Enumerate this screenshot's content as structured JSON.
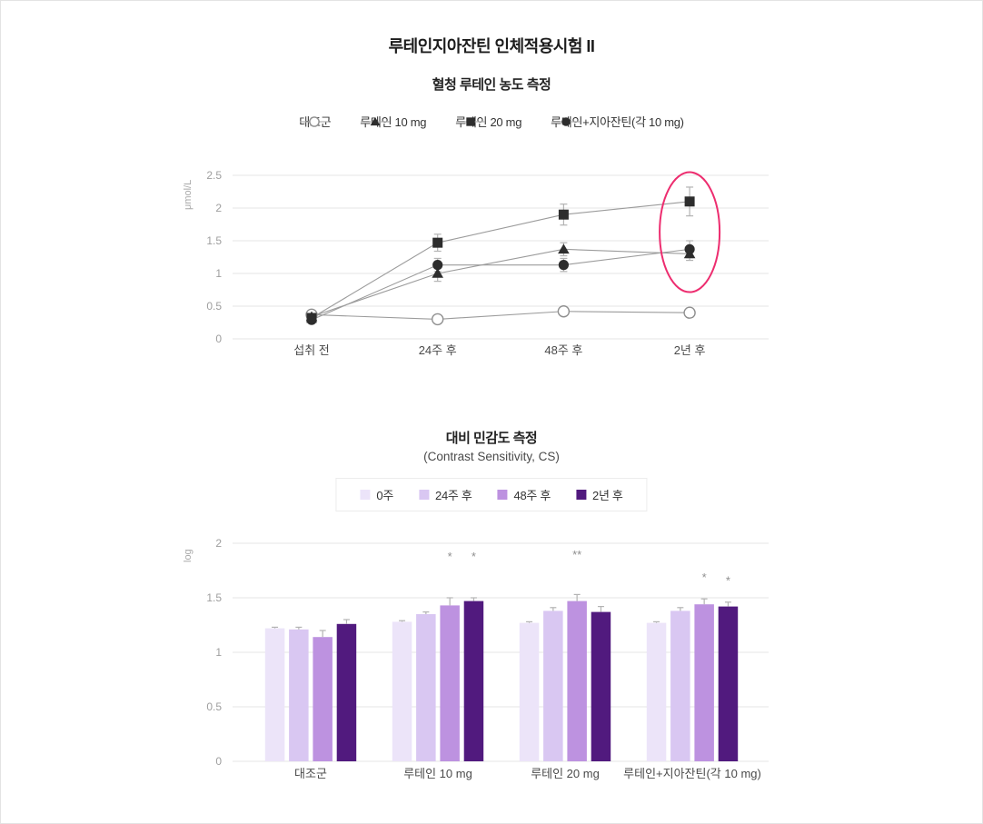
{
  "page": {
    "title": "루테인지아잔틴 인체적용시험 II"
  },
  "chart_data": [
    {
      "type": "line",
      "title": "혈청 루테인 농도 측정",
      "ylabel": "μmol/L",
      "ylim": [
        0,
        2.5
      ],
      "yticks": [
        0,
        0.5,
        1,
        1.5,
        2,
        2.5
      ],
      "grid": "horizontal",
      "legend_position": "top",
      "categories": [
        "섭취 전",
        "24주 후",
        "48주 후",
        "2년 후"
      ],
      "series": [
        {
          "name": "대조군",
          "marker": "open-circle",
          "values": [
            0.37,
            0.3,
            0.42,
            0.4
          ],
          "errors": [
            0.04,
            0.04,
            0.05,
            0.07
          ]
        },
        {
          "name": "루테인 10 mg",
          "marker": "triangle",
          "values": [
            0.34,
            1.0,
            1.37,
            1.3
          ],
          "errors": [
            0.05,
            0.12,
            0.1,
            0.1
          ]
        },
        {
          "name": "루테인 20 mg",
          "marker": "square",
          "values": [
            0.32,
            1.47,
            1.9,
            2.1
          ],
          "errors": [
            0.05,
            0.13,
            0.16,
            0.22
          ]
        },
        {
          "name": "루테인+지아잔틴(각 10 mg)",
          "marker": "circle",
          "values": [
            0.29,
            1.13,
            1.13,
            1.37
          ],
          "errors": [
            0.05,
            0.1,
            0.1,
            0.13
          ]
        }
      ],
      "annotation": {
        "shape": "ellipse",
        "category_index": 3,
        "color": "#ed2d6f"
      }
    },
    {
      "type": "bar",
      "title": "대비 민감도 측정",
      "subtitle": "(Contrast Sensitivity, CS)",
      "ylabel": "log",
      "ylim": [
        0,
        2
      ],
      "yticks": [
        0,
        0.5,
        1,
        1.5,
        2
      ],
      "grid": "horizontal",
      "legend_position": "top-boxed",
      "categories": [
        "대조군",
        "루테인 10 mg",
        "루테인 20 mg",
        "루테인+지아잔틴(각 10 mg)"
      ],
      "series": [
        {
          "name": "0주",
          "color": "#ece4f9",
          "values": [
            1.22,
            1.28,
            1.27,
            1.27
          ],
          "errors": [
            0.01,
            0.01,
            0.01,
            0.01
          ]
        },
        {
          "name": "24주 후",
          "color": "#d9c7f2",
          "values": [
            1.21,
            1.35,
            1.38,
            1.38
          ],
          "errors": [
            0.02,
            0.02,
            0.03,
            0.03
          ]
        },
        {
          "name": "48주 후",
          "color": "#bd92e0",
          "values": [
            1.14,
            1.43,
            1.47,
            1.44
          ],
          "errors": [
            0.06,
            0.07,
            0.06,
            0.05
          ]
        },
        {
          "name": "2년 후",
          "color": "#511a7e",
          "values": [
            1.26,
            1.47,
            1.37,
            1.42
          ],
          "errors": [
            0.04,
            0.03,
            0.05,
            0.04
          ]
        }
      ],
      "significance": [
        {
          "category_index": 1,
          "series_index": 2,
          "label": "*",
          "y": 1.84
        },
        {
          "category_index": 1,
          "series_index": 3,
          "label": "*",
          "y": 1.84
        },
        {
          "category_index": 2,
          "series_index": 2,
          "label": "**",
          "y": 1.86
        },
        {
          "category_index": 3,
          "series_index": 2,
          "label": "*",
          "y": 1.65
        },
        {
          "category_index": 3,
          "series_index": 3,
          "label": "*",
          "y": 1.62
        }
      ]
    }
  ],
  "style": {
    "line_color": "#9b9b9b",
    "marker_color": "#2d2d2d",
    "error_color": "#b3b3b3",
    "grid_color": "#e4e4e4",
    "tick_color": "#9e9e9e",
    "xlabel_color": "#4a4a4a",
    "significance_color": "#8f8f8f"
  }
}
